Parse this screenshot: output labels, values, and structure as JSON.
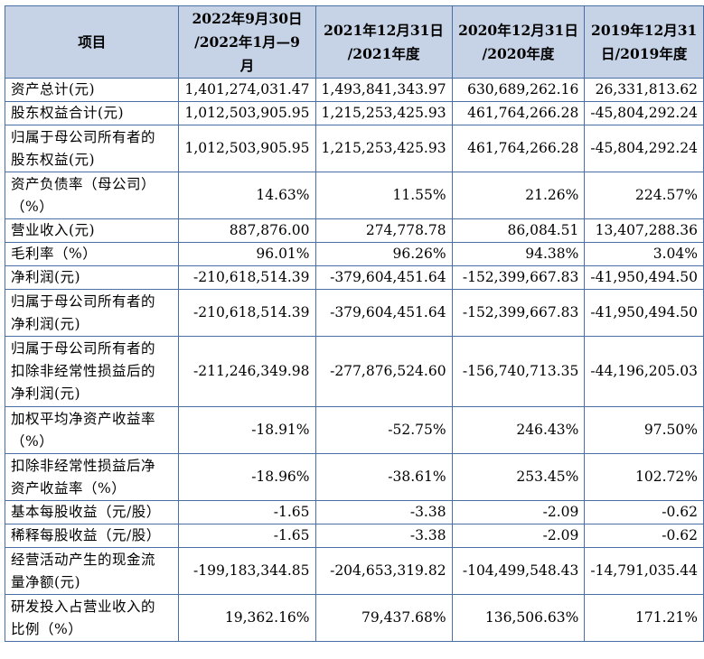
{
  "table": {
    "headers": [
      "项目",
      "2022年9月30日\n/2022年1月—9\n月",
      "2021年12月31日\n/2021年度",
      "2020年12月31日\n/2020年度",
      "2019年12月31\n日/2019年度"
    ],
    "rows": [
      {
        "label": "资产总计(元)",
        "values": [
          "1,401,274,031.47",
          "1,493,841,343.97",
          "630,689,262.16",
          "26,331,813.62"
        ]
      },
      {
        "label": "股东权益合计(元)",
        "values": [
          "1,012,503,905.95",
          "1,215,253,425.93",
          "461,764,266.28",
          "-45,804,292.24"
        ]
      },
      {
        "label": "归属于母公司所有者的\n股东权益(元)",
        "values": [
          "1,012,503,905.95",
          "1,215,253,425.93",
          "461,764,266.28",
          "-45,804,292.24"
        ]
      },
      {
        "label": "资产负债率（母公司）\n（%）",
        "values": [
          "14.63%",
          "11.55%",
          "21.26%",
          "224.57%"
        ]
      },
      {
        "label": "营业收入(元)",
        "values": [
          "887,876.00",
          "274,778.78",
          "86,084.51",
          "13,407,288.36"
        ]
      },
      {
        "label": "毛利率（%）",
        "values": [
          "96.01%",
          "96.26%",
          "94.38%",
          "3.04%"
        ]
      },
      {
        "label": "净利润(元)",
        "values": [
          "-210,618,514.39",
          "-379,604,451.64",
          "-152,399,667.83",
          "-41,950,494.50"
        ]
      },
      {
        "label": "归属于母公司所有者的\n净利润(元)",
        "values": [
          "-210,618,514.39",
          "-379,604,451.64",
          "-152,399,667.83",
          "-41,950,494.50"
        ]
      },
      {
        "label": "归属于母公司所有者的\n扣除非经常性损益后的\n净利润(元)",
        "values": [
          "-211,246,349.98",
          "-277,876,524.60",
          "-156,740,713.35",
          "-44,196,205.03"
        ]
      },
      {
        "label": "加权平均净资产收益率\n（%）",
        "values": [
          "-18.91%",
          "-52.75%",
          "246.43%",
          "97.50%"
        ]
      },
      {
        "label": "扣除非经常性损益后净\n资产收益率（%）",
        "values": [
          "-18.96%",
          "-38.61%",
          "253.45%",
          "102.72%"
        ]
      },
      {
        "label": "基本每股收益（元/股）",
        "values": [
          "-1.65",
          "-3.38",
          "-2.09",
          "-0.62"
        ]
      },
      {
        "label": "稀释每股收益（元/股）",
        "values": [
          "-1.65",
          "-3.38",
          "-2.09",
          "-0.62"
        ]
      },
      {
        "label": "经营活动产生的现金流\n量净额(元)",
        "values": [
          "-199,183,344.85",
          "-204,653,319.82",
          "-104,499,548.43",
          "-14,791,035.44"
        ]
      },
      {
        "label": "研发投入占营业收入的\n比例（%）",
        "values": [
          "19,362.16%",
          "79,437.68%",
          "136,506.63%",
          "171.21%"
        ]
      }
    ]
  }
}
